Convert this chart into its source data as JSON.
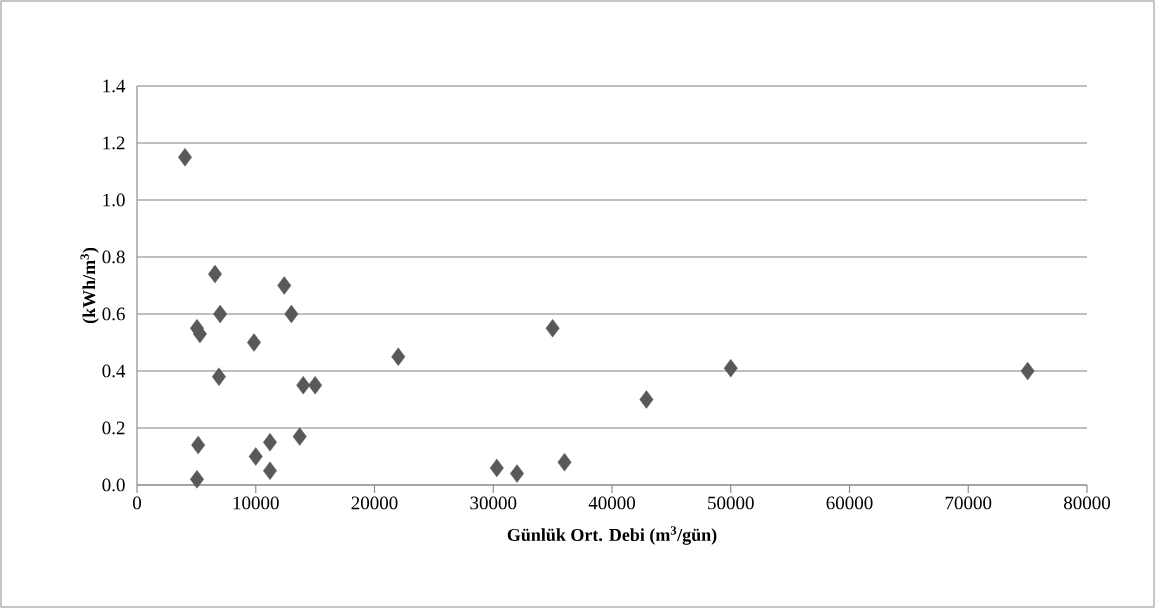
{
  "chart_data": {
    "type": "scatter",
    "xlabel": "**Günlük Ort. Debi (m$^{3}$/gün)**",
    "ylabel": "**(kWh/m$^{3}$)**",
    "x": [
      4040,
      6570,
      7000,
      5050,
      5300,
      6900,
      9850,
      12400,
      13000,
      14000,
      15000,
      13700,
      5150,
      5050,
      11200,
      10000,
      11200,
      22000,
      35000,
      30300,
      32000,
      36000,
      42900,
      50000,
      75000
    ],
    "values": [
      1.15,
      0.74,
      0.6,
      0.55,
      0.53,
      0.38,
      0.5,
      0.7,
      0.6,
      0.35,
      0.35,
      0.17,
      0.14,
      0.02,
      0.15,
      0.1,
      0.05,
      0.45,
      0.55,
      0.06,
      0.04,
      0.08,
      0.3,
      0.41,
      0.4
    ],
    "color": "#595959",
    "marker": "diamond",
    "xlim": [
      0,
      80000
    ],
    "ylim": [
      0,
      1.4
    ],
    "xticks": [
      0,
      10000,
      20000,
      30000,
      40000,
      50000,
      60000,
      70000,
      80000
    ],
    "yticks": [
      {
        "value": 0,
        "label": "0.0"
      },
      0.2,
      0.4,
      0.6,
      0.8,
      {
        "value": 1,
        "label": "1.0"
      },
      1.2,
      1.4
    ],
    "grid": "y"
  }
}
